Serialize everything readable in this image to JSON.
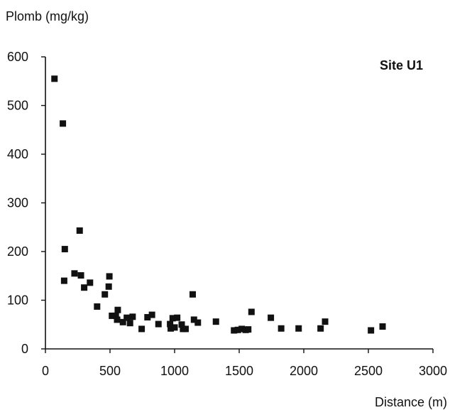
{
  "chart_data": {
    "type": "scatter",
    "title": "",
    "xlabel": "Distance (m)",
    "ylabel": "Plomb (mg/kg)",
    "annotation": "Site U1",
    "xlim": [
      0,
      3000
    ],
    "ylim": [
      0,
      600
    ],
    "xticks": [
      0,
      500,
      1000,
      1500,
      2000,
      2500,
      3000
    ],
    "yticks": [
      0,
      100,
      200,
      300,
      400,
      500,
      600
    ],
    "grid": false,
    "legend": "none",
    "marker": "square",
    "color": "#111111",
    "points": [
      {
        "x": 70,
        "y": 555
      },
      {
        "x": 135,
        "y": 463
      },
      {
        "x": 150,
        "y": 205
      },
      {
        "x": 145,
        "y": 140
      },
      {
        "x": 225,
        "y": 155
      },
      {
        "x": 265,
        "y": 243
      },
      {
        "x": 275,
        "y": 151
      },
      {
        "x": 300,
        "y": 126
      },
      {
        "x": 345,
        "y": 136
      },
      {
        "x": 400,
        "y": 87
      },
      {
        "x": 460,
        "y": 112
      },
      {
        "x": 490,
        "y": 128
      },
      {
        "x": 495,
        "y": 149
      },
      {
        "x": 515,
        "y": 68
      },
      {
        "x": 545,
        "y": 68
      },
      {
        "x": 555,
        "y": 60
      },
      {
        "x": 560,
        "y": 80
      },
      {
        "x": 600,
        "y": 55
      },
      {
        "x": 630,
        "y": 64
      },
      {
        "x": 655,
        "y": 53
      },
      {
        "x": 675,
        "y": 66
      },
      {
        "x": 745,
        "y": 41
      },
      {
        "x": 790,
        "y": 65
      },
      {
        "x": 825,
        "y": 70
      },
      {
        "x": 875,
        "y": 51
      },
      {
        "x": 965,
        "y": 51
      },
      {
        "x": 970,
        "y": 42
      },
      {
        "x": 985,
        "y": 63
      },
      {
        "x": 1000,
        "y": 44
      },
      {
        "x": 1020,
        "y": 64
      },
      {
        "x": 1055,
        "y": 50
      },
      {
        "x": 1065,
        "y": 41
      },
      {
        "x": 1085,
        "y": 41
      },
      {
        "x": 1140,
        "y": 112
      },
      {
        "x": 1150,
        "y": 60
      },
      {
        "x": 1180,
        "y": 54
      },
      {
        "x": 1320,
        "y": 56
      },
      {
        "x": 1460,
        "y": 38
      },
      {
        "x": 1490,
        "y": 39
      },
      {
        "x": 1520,
        "y": 41
      },
      {
        "x": 1550,
        "y": 39
      },
      {
        "x": 1570,
        "y": 40
      },
      {
        "x": 1595,
        "y": 76
      },
      {
        "x": 1745,
        "y": 64
      },
      {
        "x": 1825,
        "y": 42
      },
      {
        "x": 1960,
        "y": 42
      },
      {
        "x": 2130,
        "y": 42
      },
      {
        "x": 2165,
        "y": 56
      },
      {
        "x": 2520,
        "y": 38
      },
      {
        "x": 2610,
        "y": 46
      }
    ]
  }
}
